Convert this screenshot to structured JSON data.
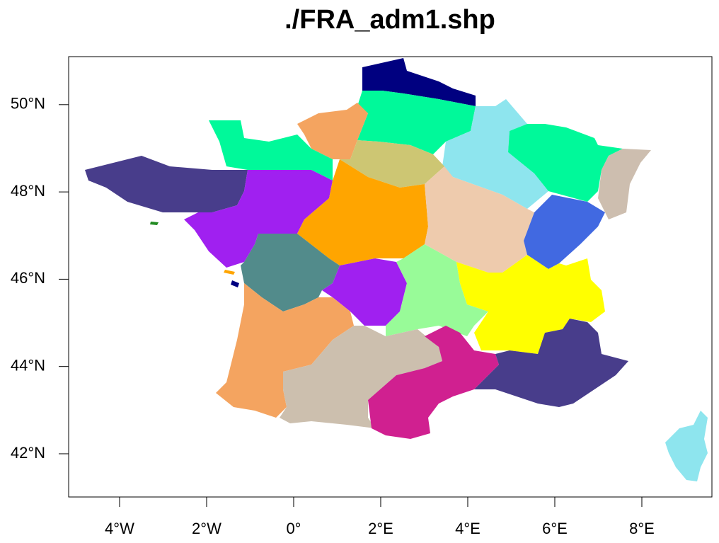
{
  "title": "./FRA_adm1.shp",
  "xlim": [
    -5.17,
    9.61
  ],
  "ylim": [
    41.01,
    51.1
  ],
  "xticks": [
    {
      "value": -4,
      "label": "4°W"
    },
    {
      "value": -2,
      "label": "2°W"
    },
    {
      "value": 0,
      "label": "0°"
    },
    {
      "value": 2,
      "label": "2°E"
    },
    {
      "value": 4,
      "label": "4°E"
    },
    {
      "value": 6,
      "label": "6°E"
    },
    {
      "value": 8,
      "label": "8°E"
    }
  ],
  "yticks": [
    {
      "value": 42,
      "label": "42°N"
    },
    {
      "value": 44,
      "label": "44°N"
    },
    {
      "value": 46,
      "label": "46°N"
    },
    {
      "value": 48,
      "label": "48°N"
    },
    {
      "value": 50,
      "label": "50°N"
    }
  ]
}
